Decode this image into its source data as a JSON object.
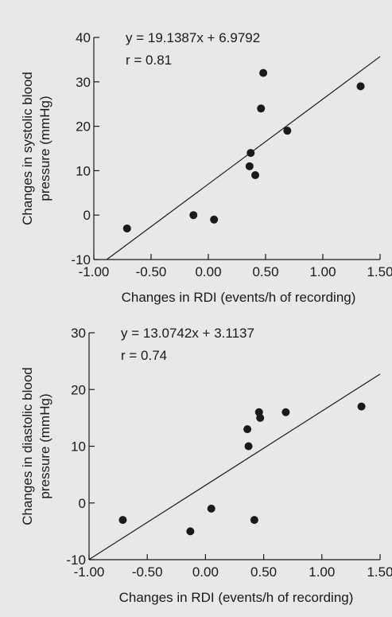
{
  "chart_data": [
    {
      "type": "scatter",
      "equation": "y = 19.1387x + 6.9792",
      "r_label": "r = 0.81",
      "xlabel": "Changes in RDI (events/h of recording)",
      "ylabel_lines": [
        "Changes in systolic blood",
        "pressure (mmHg)"
      ],
      "xlim": [
        -1.0,
        1.5
      ],
      "ylim": [
        -10,
        40
      ],
      "xticks": [
        -1.0,
        -0.5,
        0.0,
        0.5,
        1.0,
        1.5
      ],
      "xtick_labels": [
        "-1.00",
        "-0.50",
        "0.00",
        "0.50",
        "1.00",
        "1.50"
      ],
      "yticks": [
        -10,
        0,
        10,
        20,
        30,
        40
      ],
      "ytick_labels": [
        "-10",
        "0",
        "10",
        "20",
        "30",
        "40"
      ],
      "regression": {
        "slope": 19.1387,
        "intercept": 6.9792
      },
      "points": [
        {
          "x": -0.71,
          "y": -3
        },
        {
          "x": -0.13,
          "y": 0
        },
        {
          "x": 0.05,
          "y": -1
        },
        {
          "x": 0.36,
          "y": 11
        },
        {
          "x": 0.37,
          "y": 14
        },
        {
          "x": 0.41,
          "y": 9
        },
        {
          "x": 0.46,
          "y": 24
        },
        {
          "x": 0.48,
          "y": 32
        },
        {
          "x": 0.69,
          "y": 19
        },
        {
          "x": 1.33,
          "y": 29
        }
      ],
      "grid": false,
      "colors": {
        "marker": "#1a1a1a",
        "line": "#1a1a1a",
        "background": "#e8e8e8"
      }
    },
    {
      "type": "scatter",
      "equation": "y = 13.0742x + 3.1137",
      "r_label": "r = 0.74",
      "xlabel": "Changes in RDI (events/h of recording)",
      "ylabel_lines": [
        "Changes in diastolic blood",
        "pressure (mmHg)"
      ],
      "xlim": [
        -1.0,
        1.5
      ],
      "ylim": [
        -10,
        30
      ],
      "xticks": [
        -1.0,
        -0.5,
        0.0,
        0.5,
        1.0,
        1.5
      ],
      "xtick_labels": [
        "-1.00",
        "-0.50",
        "0.00",
        "0.50",
        "1.00",
        "1.50"
      ],
      "yticks": [
        -10,
        0,
        10,
        20,
        30
      ],
      "ytick_labels": [
        "-10",
        "0",
        "10",
        "20",
        "30"
      ],
      "regression": {
        "slope": 13.0742,
        "intercept": 3.1137
      },
      "points": [
        {
          "x": -0.71,
          "y": -3
        },
        {
          "x": -0.13,
          "y": -5
        },
        {
          "x": 0.05,
          "y": -1
        },
        {
          "x": 0.36,
          "y": 13
        },
        {
          "x": 0.37,
          "y": 10
        },
        {
          "x": 0.42,
          "y": -3
        },
        {
          "x": 0.46,
          "y": 16
        },
        {
          "x": 0.47,
          "y": 15
        },
        {
          "x": 0.69,
          "y": 16
        },
        {
          "x": 1.34,
          "y": 17
        }
      ],
      "grid": false,
      "colors": {
        "marker": "#1a1a1a",
        "line": "#1a1a1a",
        "background": "#e8e8e8"
      }
    }
  ]
}
